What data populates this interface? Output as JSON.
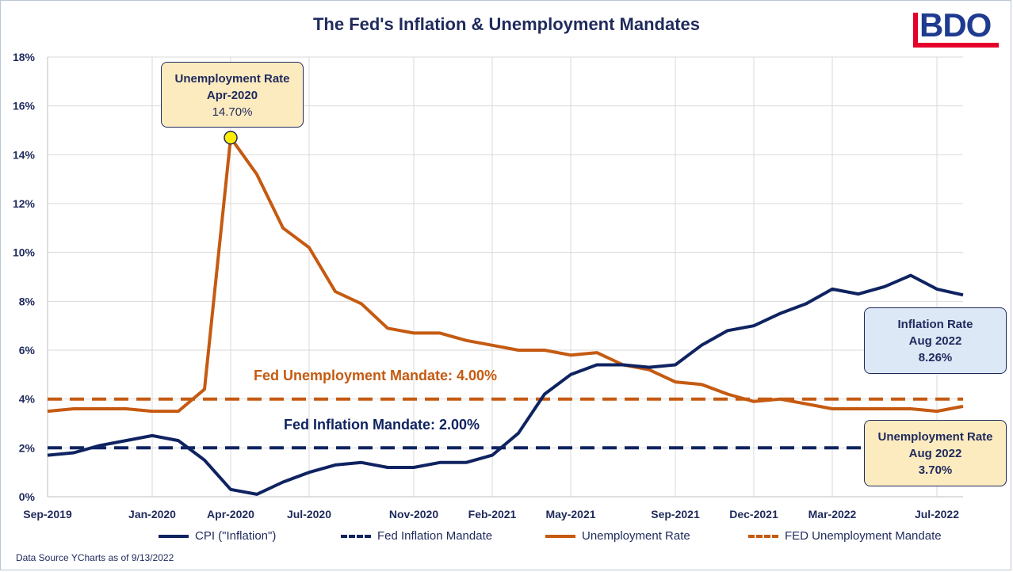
{
  "title": "The Fed's Inflation & Unemployment Mandates",
  "logo": "BDO",
  "source_note": "Data Source YCharts as of 9/13/2022",
  "colors": {
    "navy": "#0f2361",
    "orange": "#c55a11",
    "annotation_fill_orange": "#fdebc0",
    "annotation_fill_blue": "#dce8f6",
    "marker": "#ffee00"
  },
  "annotations": {
    "peak": {
      "line1": "Unemployment Rate",
      "line2": "Apr-2020",
      "line3": "14.70%"
    },
    "inflation": {
      "line1": "Inflation Rate",
      "line2": "Aug 2022",
      "line3": "8.26%"
    },
    "unemployment": {
      "line1": "Unemployment Rate",
      "line2": "Aug 2022",
      "line3": "3.70%"
    },
    "unemployment_mandate_label": "Fed Unemployment Mandate: 4.00%",
    "inflation_mandate_label": "Fed Inflation Mandate: 2.00%"
  },
  "legend": [
    {
      "label": "CPI (\"Inflation\")",
      "style": "solid",
      "color": "#0f2361"
    },
    {
      "label": "Fed Inflation Mandate",
      "style": "dashed",
      "color": "#0f2361"
    },
    {
      "label": "Unemployment Rate",
      "style": "solid",
      "color": "#c55a11"
    },
    {
      "label": "FED Unemployment Mandate",
      "style": "dashed",
      "color": "#c55a11"
    }
  ],
  "chart_data": {
    "type": "line",
    "title": "The Fed's Inflation & Unemployment Mandates",
    "x": [
      "Sep-2019",
      "Oct-2019",
      "Nov-2019",
      "Dec-2019",
      "Jan-2020",
      "Feb-2020",
      "Mar-2020",
      "Apr-2020",
      "May-2020",
      "Jun-2020",
      "Jul-2020",
      "Aug-2020",
      "Sep-2020",
      "Oct-2020",
      "Nov-2020",
      "Dec-2020",
      "Jan-2021",
      "Feb-2021",
      "Mar-2021",
      "Apr-2021",
      "May-2021",
      "Jun-2021",
      "Jul-2021",
      "Aug-2021",
      "Sep-2021",
      "Oct-2021",
      "Nov-2021",
      "Dec-2021",
      "Jan-2022",
      "Feb-2022",
      "Mar-2022",
      "Apr-2022",
      "May-2022",
      "Jun-2022",
      "Jul-2022",
      "Aug-2022"
    ],
    "x_tick_labels": [
      "Sep-2019",
      "Jan-2020",
      "Apr-2020",
      "Jul-2020",
      "Nov-2020",
      "Feb-2021",
      "May-2021",
      "Sep-2021",
      "Dec-2021",
      "Mar-2022",
      "Jul-2022"
    ],
    "x_tick_index": [
      0,
      4,
      7,
      10,
      14,
      17,
      20,
      24,
      27,
      30,
      34
    ],
    "y_ticks": [
      "0%",
      "2%",
      "4%",
      "6%",
      "8%",
      "10%",
      "12%",
      "14%",
      "16%",
      "18%"
    ],
    "ylim": [
      0,
      18
    ],
    "grid": true,
    "legend_position": "bottom",
    "series": [
      {
        "name": "CPI (\"Inflation\")",
        "style": "solid",
        "values": [
          1.7,
          1.8,
          2.1,
          2.3,
          2.5,
          2.3,
          1.5,
          0.3,
          0.1,
          0.6,
          1.0,
          1.3,
          1.4,
          1.2,
          1.2,
          1.4,
          1.4,
          1.7,
          2.6,
          4.2,
          5.0,
          5.4,
          5.4,
          5.3,
          5.4,
          6.2,
          6.8,
          7.0,
          7.5,
          7.9,
          8.5,
          8.3,
          8.6,
          9.06,
          8.5,
          8.26
        ]
      },
      {
        "name": "Fed Inflation Mandate",
        "style": "dashed",
        "values": [
          2,
          2,
          2,
          2,
          2,
          2,
          2,
          2,
          2,
          2,
          2,
          2,
          2,
          2,
          2,
          2,
          2,
          2,
          2,
          2,
          2,
          2,
          2,
          2,
          2,
          2,
          2,
          2,
          2,
          2,
          2,
          2,
          2,
          2,
          2,
          2
        ]
      },
      {
        "name": "Unemployment Rate",
        "style": "solid",
        "values": [
          3.5,
          3.6,
          3.6,
          3.6,
          3.5,
          3.5,
          4.4,
          14.7,
          13.2,
          11.0,
          10.2,
          8.4,
          7.9,
          6.9,
          6.7,
          6.7,
          6.4,
          6.2,
          6.0,
          6.0,
          5.8,
          5.9,
          5.4,
          5.2,
          4.7,
          4.6,
          4.2,
          3.9,
          4.0,
          3.8,
          3.6,
          3.6,
          3.6,
          3.6,
          3.5,
          3.7
        ]
      },
      {
        "name": "FED Unemployment Mandate",
        "style": "dashed",
        "values": [
          4,
          4,
          4,
          4,
          4,
          4,
          4,
          4,
          4,
          4,
          4,
          4,
          4,
          4,
          4,
          4,
          4,
          4,
          4,
          4,
          4,
          4,
          4,
          4,
          4,
          4,
          4,
          4,
          4,
          4,
          4,
          4,
          4,
          4,
          4,
          4
        ]
      }
    ]
  }
}
